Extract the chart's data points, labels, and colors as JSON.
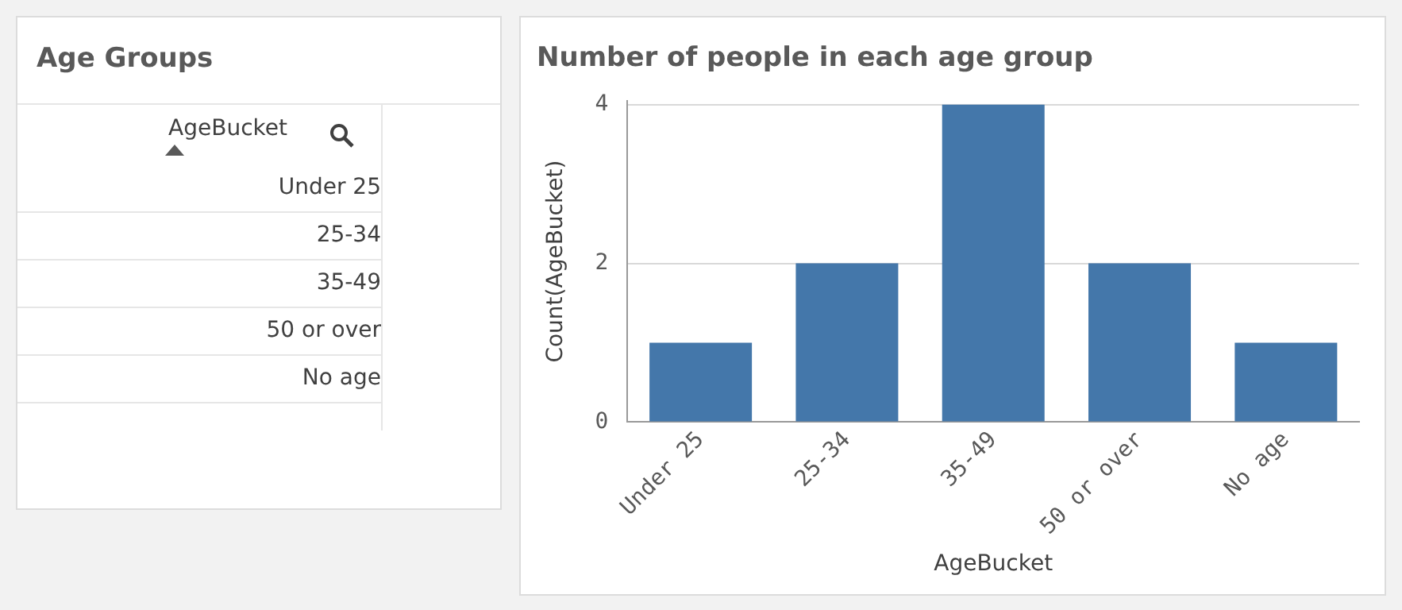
{
  "chart_data": [
    {
      "type": "other",
      "title": "Age Groups",
      "annotations": [
        "AgeBucket",
        "Under 25",
        "25-34",
        "35-49",
        "50 or over",
        "No age"
      ]
    },
    {
      "type": "bar",
      "title": "Number of people in each age group",
      "xlabel": "AgeBucket",
      "ylabel": "Count(AgeBucket)",
      "categories": [
        "Under 25",
        "25-34",
        "35-49",
        "50 or over",
        "No age"
      ],
      "values": [
        1,
        2,
        4,
        2,
        1
      ],
      "color": "#4477aa",
      "ylim": [
        0,
        4.05
      ],
      "yticks": [
        0,
        2,
        4
      ],
      "grid": "y",
      "legend": false
    }
  ]
}
